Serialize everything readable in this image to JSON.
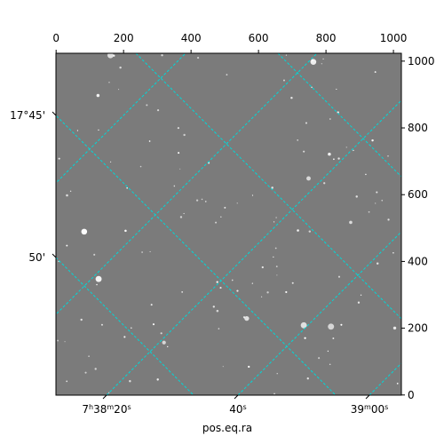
{
  "chart_data": {
    "type": "image",
    "x_label": "pos.eq.ra",
    "xlim": [
      -0.5,
      1023.5
    ],
    "ylim": [
      -0.5,
      1023.5
    ],
    "xticks": [
      0,
      200,
      400,
      600,
      800,
      1000
    ],
    "yticks": [
      0,
      200,
      400,
      600,
      800,
      1000
    ],
    "ra_ticks": [
      {
        "value": 27460,
        "label": null
      },
      {
        "value": 27480,
        "label": null
      },
      {
        "value": 27500,
        "label": "7h38m20s"
      },
      {
        "value": 27520,
        "label": "40s"
      },
      {
        "value": 27540,
        "label": "39m00s"
      }
    ],
    "dec_ticks": [
      {
        "value": 1055,
        "label": null
      },
      {
        "value": 1060,
        "label": null
      },
      {
        "value": 1065,
        "label": "17°45'"
      },
      {
        "value": 1070,
        "label": "50'"
      }
    ],
    "grid": true,
    "grid_color": "#00d8d8"
  }
}
